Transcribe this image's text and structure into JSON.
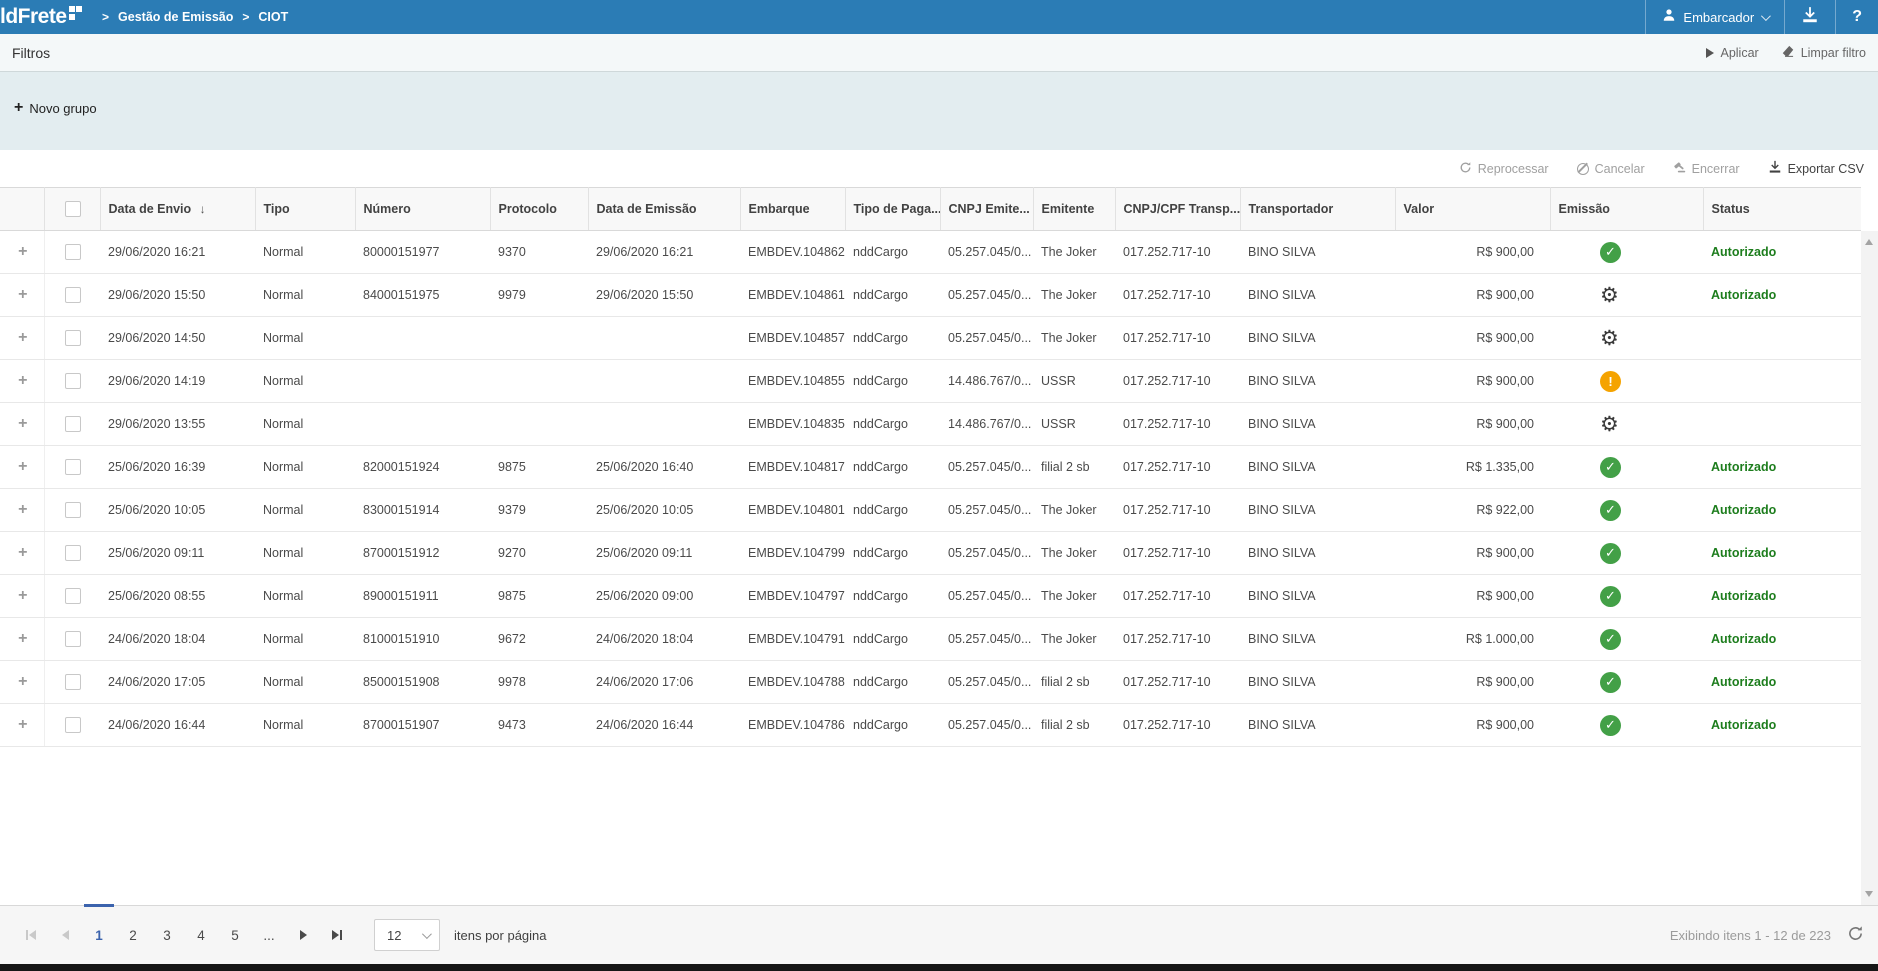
{
  "topbar": {
    "logo": "ldFrete",
    "breadcrumb_sep": ">",
    "breadcrumb": [
      "Gestão de Emissão",
      "CIOT"
    ],
    "user_label": "Embarcador",
    "help_label": "?"
  },
  "filters_bar": {
    "title": "Filtros",
    "apply_label": "Aplicar",
    "clear_label": "Limpar filtro"
  },
  "group_bar": {
    "new_group_icon": "+",
    "new_group_label": "Novo grupo"
  },
  "toolbar": {
    "reprocess_label": "Reprocessar",
    "cancel_label": "Cancelar",
    "finish_label": "Encerrar",
    "export_label": "Exportar CSV"
  },
  "icons": {
    "sort_desc": "↓",
    "check": "✓",
    "warning": "!",
    "gear": "⚙"
  },
  "table": {
    "headers": {
      "data_envio": "Data de Envio",
      "tipo": "Tipo",
      "numero": "Número",
      "protocolo": "Protocolo",
      "data_emissao": "Data de Emissão",
      "embarque": "Embarque",
      "tipo_pagamento": "Tipo de Paga...",
      "cnpj_emitente": "CNPJ Emite...",
      "emitente": "Emitente",
      "cnpj_transportador": "CNPJ/CPF Transp...",
      "transportador": "Transportador",
      "valor": "Valor",
      "emissao": "Emissão",
      "status": "Status"
    },
    "rows": [
      {
        "data_envio": "29/06/2020 16:21",
        "tipo": "Normal",
        "numero": "80000151977",
        "protocolo": "9370",
        "data_emissao": "29/06/2020 16:21",
        "embarque": "EMBDEV.104862",
        "tipo_pagamento": "nddCargo",
        "cnpj_emitente": "05.257.045/0...",
        "emitente": "The Joker",
        "cnpj_transportador": "017.252.717-10",
        "transportador": "BINO SILVA",
        "valor": "R$ 900,00",
        "emissao": "check",
        "status": "Autorizado"
      },
      {
        "data_envio": "29/06/2020 15:50",
        "tipo": "Normal",
        "numero": "84000151975",
        "protocolo": "9979",
        "data_emissao": "29/06/2020 15:50",
        "embarque": "EMBDEV.104861",
        "tipo_pagamento": "nddCargo",
        "cnpj_emitente": "05.257.045/0...",
        "emitente": "The Joker",
        "cnpj_transportador": "017.252.717-10",
        "transportador": "BINO SILVA",
        "valor": "R$ 900,00",
        "emissao": "gear",
        "status": "Autorizado"
      },
      {
        "data_envio": "29/06/2020 14:50",
        "tipo": "Normal",
        "numero": "",
        "protocolo": "",
        "data_emissao": "",
        "embarque": "EMBDEV.104857",
        "tipo_pagamento": "nddCargo",
        "cnpj_emitente": "05.257.045/0...",
        "emitente": "The Joker",
        "cnpj_transportador": "017.252.717-10",
        "transportador": "BINO SILVA",
        "valor": "R$ 900,00",
        "emissao": "gear",
        "status": ""
      },
      {
        "data_envio": "29/06/2020 14:19",
        "tipo": "Normal",
        "numero": "",
        "protocolo": "",
        "data_emissao": "",
        "embarque": "EMBDEV.104855",
        "tipo_pagamento": "nddCargo",
        "cnpj_emitente": "14.486.767/0...",
        "emitente": "USSR",
        "cnpj_transportador": "017.252.717-10",
        "transportador": "BINO SILVA",
        "valor": "R$ 900,00",
        "emissao": "warning",
        "status": ""
      },
      {
        "data_envio": "29/06/2020 13:55",
        "tipo": "Normal",
        "numero": "",
        "protocolo": "",
        "data_emissao": "",
        "embarque": "EMBDEV.104835",
        "tipo_pagamento": "nddCargo",
        "cnpj_emitente": "14.486.767/0...",
        "emitente": "USSR",
        "cnpj_transportador": "017.252.717-10",
        "transportador": "BINO SILVA",
        "valor": "R$ 900,00",
        "emissao": "gear",
        "status": ""
      },
      {
        "data_envio": "25/06/2020 16:39",
        "tipo": "Normal",
        "numero": "82000151924",
        "protocolo": "9875",
        "data_emissao": "25/06/2020 16:40",
        "embarque": "EMBDEV.104817",
        "tipo_pagamento": "nddCargo",
        "cnpj_emitente": "05.257.045/0...",
        "emitente": "filial 2 sb",
        "cnpj_transportador": "017.252.717-10",
        "transportador": "BINO SILVA",
        "valor": "R$ 1.335,00",
        "emissao": "check",
        "status": "Autorizado"
      },
      {
        "data_envio": "25/06/2020 10:05",
        "tipo": "Normal",
        "numero": "83000151914",
        "protocolo": "9379",
        "data_emissao": "25/06/2020 10:05",
        "embarque": "EMBDEV.104801",
        "tipo_pagamento": "nddCargo",
        "cnpj_emitente": "05.257.045/0...",
        "emitente": "The Joker",
        "cnpj_transportador": "017.252.717-10",
        "transportador": "BINO SILVA",
        "valor": "R$ 922,00",
        "emissao": "check",
        "status": "Autorizado"
      },
      {
        "data_envio": "25/06/2020 09:11",
        "tipo": "Normal",
        "numero": "87000151912",
        "protocolo": "9270",
        "data_emissao": "25/06/2020 09:11",
        "embarque": "EMBDEV.104799",
        "tipo_pagamento": "nddCargo",
        "cnpj_emitente": "05.257.045/0...",
        "emitente": "The Joker",
        "cnpj_transportador": "017.252.717-10",
        "transportador": "BINO SILVA",
        "valor": "R$ 900,00",
        "emissao": "check",
        "status": "Autorizado"
      },
      {
        "data_envio": "25/06/2020 08:55",
        "tipo": "Normal",
        "numero": "89000151911",
        "protocolo": "9875",
        "data_emissao": "25/06/2020 09:00",
        "embarque": "EMBDEV.104797",
        "tipo_pagamento": "nddCargo",
        "cnpj_emitente": "05.257.045/0...",
        "emitente": "The Joker",
        "cnpj_transportador": "017.252.717-10",
        "transportador": "BINO SILVA",
        "valor": "R$ 900,00",
        "emissao": "check",
        "status": "Autorizado"
      },
      {
        "data_envio": "24/06/2020 18:04",
        "tipo": "Normal",
        "numero": "81000151910",
        "protocolo": "9672",
        "data_emissao": "24/06/2020 18:04",
        "embarque": "EMBDEV.104791",
        "tipo_pagamento": "nddCargo",
        "cnpj_emitente": "05.257.045/0...",
        "emitente": "The Joker",
        "cnpj_transportador": "017.252.717-10",
        "transportador": "BINO SILVA",
        "valor": "R$ 1.000,00",
        "emissao": "check",
        "status": "Autorizado"
      },
      {
        "data_envio": "24/06/2020 17:05",
        "tipo": "Normal",
        "numero": "85000151908",
        "protocolo": "9978",
        "data_emissao": "24/06/2020 17:06",
        "embarque": "EMBDEV.104788",
        "tipo_pagamento": "nddCargo",
        "cnpj_emitente": "05.257.045/0...",
        "emitente": "filial 2 sb",
        "cnpj_transportador": "017.252.717-10",
        "transportador": "BINO SILVA",
        "valor": "R$ 900,00",
        "emissao": "check",
        "status": "Autorizado"
      },
      {
        "data_envio": "24/06/2020 16:44",
        "tipo": "Normal",
        "numero": "87000151907",
        "protocolo": "9473",
        "data_emissao": "24/06/2020 16:44",
        "embarque": "EMBDEV.104786",
        "tipo_pagamento": "nddCargo",
        "cnpj_emitente": "05.257.045/0...",
        "emitente": "filial 2 sb",
        "cnpj_transportador": "017.252.717-10",
        "transportador": "BINO SILVA",
        "valor": "R$ 900,00",
        "emissao": "check",
        "status": "Autorizado"
      }
    ]
  },
  "pagination": {
    "pages": [
      "1",
      "2",
      "3",
      "4",
      "5"
    ],
    "active_page": "1",
    "ellipsis": "...",
    "page_size": "12",
    "page_size_label": "itens por página",
    "info": "Exibindo itens 1 - 12 de 223"
  },
  "colors": {
    "topbar_blue": "#2b7cb5",
    "accent_blue": "#3b63ad",
    "success_green": "#43a047",
    "warning_orange": "#f5a300",
    "status_green": "#1d7d1d"
  }
}
